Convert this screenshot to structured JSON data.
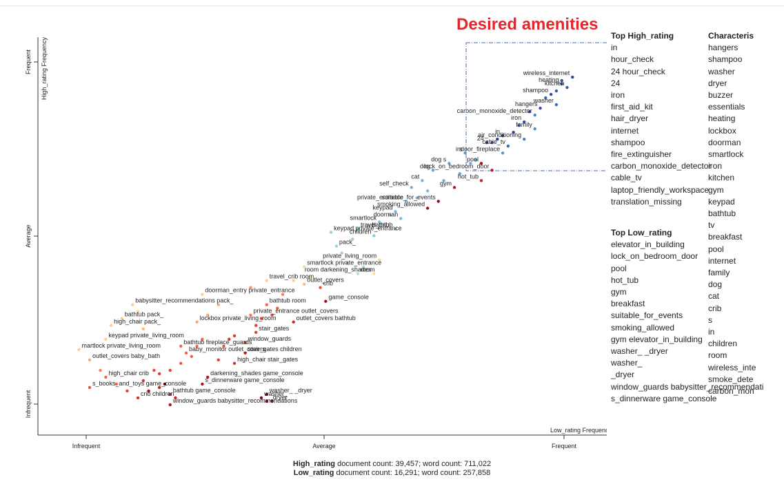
{
  "title_overlay": "Desired amenities",
  "colors": {
    "title": "#e8252b",
    "box": "#4a6fa5",
    "axis": "#333333"
  },
  "chart_data": {
    "type": "scatter",
    "xlabel": "Low_rating Frequency",
    "ylabel": "High_rating Frequency",
    "xticks": [
      "Infrequent",
      "Average",
      "Frequent"
    ],
    "yticks": [
      "Infrequent",
      "Average",
      "Frequent"
    ],
    "xlim": [
      0,
      1
    ],
    "ylim": [
      0,
      1
    ],
    "color_scale": "high-rating association: dark blue (high) to yellow (neutral) to dark red (low)",
    "highlight_box": "Desired amenities",
    "points": [
      {
        "label": "wireless_internet",
        "x": 0.99,
        "y": 0.96,
        "s": 0.95
      },
      {
        "label": "heating",
        "x": 0.97,
        "y": 0.94,
        "s": 0.9
      },
      {
        "label": "kitchen",
        "x": 0.98,
        "y": 0.93,
        "s": 0.85
      },
      {
        "label": "shampoo",
        "x": 0.95,
        "y": 0.91,
        "s": 0.92
      },
      {
        "label": "washer",
        "x": 0.96,
        "y": 0.88,
        "s": 0.8
      },
      {
        "label": "hangers",
        "x": 0.93,
        "y": 0.87,
        "s": 0.9
      },
      {
        "label": "carbon_monoxide_detector",
        "x": 0.92,
        "y": 0.85,
        "s": 0.7
      },
      {
        "label": "iron",
        "x": 0.9,
        "y": 0.83,
        "s": 0.95
      },
      {
        "label": "family",
        "x": 0.92,
        "y": 0.81,
        "s": 0.65
      },
      {
        "label": "in",
        "x": 0.86,
        "y": 0.79,
        "s": 0.96
      },
      {
        "label": "air_conditioning",
        "x": 0.9,
        "y": 0.78,
        "s": 0.7
      },
      {
        "label": "cable_tv",
        "x": 0.87,
        "y": 0.76,
        "s": 0.8
      },
      {
        "label": "24",
        "x": 0.83,
        "y": 0.77,
        "s": 0.92
      },
      {
        "label": "indoor_fireplace",
        "x": 0.86,
        "y": 0.74,
        "s": 0.6
      },
      {
        "label": "s",
        "x": 0.79,
        "y": 0.74,
        "s": 0.6
      },
      {
        "label": "pool",
        "x": 0.82,
        "y": 0.71,
        "s": -0.85
      },
      {
        "label": "lock_on_bedroom_door",
        "x": 0.84,
        "y": 0.69,
        "s": -0.8
      },
      {
        "label": "dog s",
        "x": 0.76,
        "y": 0.71,
        "s": 0.55
      },
      {
        "label": "dog",
        "x": 0.73,
        "y": 0.69,
        "s": 0.55
      },
      {
        "label": "hot_tub",
        "x": 0.82,
        "y": 0.66,
        "s": -0.7
      },
      {
        "label": "cat",
        "x": 0.71,
        "y": 0.66,
        "s": 0.5
      },
      {
        "label": "self_check",
        "x": 0.69,
        "y": 0.64,
        "s": 0.5
      },
      {
        "label": "gym",
        "x": 0.77,
        "y": 0.64,
        "s": -0.8
      },
      {
        "label": "private_entrance",
        "x": 0.68,
        "y": 0.6,
        "s": 0.45
      },
      {
        "label": "suitable_for_events",
        "x": 0.74,
        "y": 0.6,
        "s": -0.9
      },
      {
        "label": "keypad",
        "x": 0.66,
        "y": 0.57,
        "s": 0.45
      },
      {
        "label": "smoking_allowed",
        "x": 0.72,
        "y": 0.58,
        "s": -0.85
      },
      {
        "label": "smartlock",
        "x": 0.63,
        "y": 0.54,
        "s": 0.4
      },
      {
        "label": "doorman",
        "x": 0.67,
        "y": 0.55,
        "s": 0.45
      },
      {
        "label": "bathtub",
        "x": 0.66,
        "y": 0.52,
        "s": 0.4
      },
      {
        "label": "travel_crib",
        "x": 0.59,
        "y": 0.52,
        "s": 0.35
      },
      {
        "label": "keypad private_entrance",
        "x": 0.54,
        "y": 0.51,
        "s": 0.3
      },
      {
        "label": "children",
        "x": 0.62,
        "y": 0.5,
        "s": 0.35
      },
      {
        "label": "pack_",
        "x": 0.55,
        "y": 0.47,
        "s": 0.3
      },
      {
        "label": "private_living_room",
        "x": 0.63,
        "y": 0.43,
        "s": 0.05
      },
      {
        "label": "smartlock private_entrance",
        "x": 0.49,
        "y": 0.41,
        "s": 0.1
      },
      {
        "label": "room",
        "x": 0.59,
        "y": 0.39,
        "s": 0.2
      },
      {
        "label": "room darkening_shades",
        "x": 0.62,
        "y": 0.39,
        "s": 0.05
      },
      {
        "label": "travel_crib room",
        "x": 0.42,
        "y": 0.37,
        "s": 0.0
      },
      {
        "label": "outlet_covers",
        "x": 0.49,
        "y": 0.36,
        "s": -0.05
      },
      {
        "label": "crib",
        "x": 0.52,
        "y": 0.35,
        "s": -0.4
      },
      {
        "label": "doorman_entry private_entrance",
        "x": 0.3,
        "y": 0.33,
        "s": 0.0
      },
      {
        "label": "game_console",
        "x": 0.53,
        "y": 0.31,
        "s": -0.85
      },
      {
        "label": "babysitter_recommendations pack_",
        "x": 0.17,
        "y": 0.3,
        "s": 0.0
      },
      {
        "label": "bathtub room",
        "x": 0.42,
        "y": 0.3,
        "s": -0.3
      },
      {
        "label": "private_entrance outlet_covers",
        "x": 0.39,
        "y": 0.27,
        "s": -0.2
      },
      {
        "label": "bathtub pack_",
        "x": 0.15,
        "y": 0.26,
        "s": 0.0
      },
      {
        "label": "outlet_covers bathtub",
        "x": 0.47,
        "y": 0.25,
        "s": -0.7
      },
      {
        "label": "lockbox private_living_room",
        "x": 0.29,
        "y": 0.25,
        "s": -0.1
      },
      {
        "label": "high_chair pack_",
        "x": 0.13,
        "y": 0.24,
        "s": 0.0
      },
      {
        "label": "stair_gates",
        "x": 0.4,
        "y": 0.22,
        "s": -0.5
      },
      {
        "label": "keypad private_living_room",
        "x": 0.12,
        "y": 0.2,
        "s": 0.0
      },
      {
        "label": "window_guards",
        "x": 0.38,
        "y": 0.19,
        "s": -0.6
      },
      {
        "label": "bathtub fireplace_guards",
        "x": 0.26,
        "y": 0.18,
        "s": -0.3
      },
      {
        "label": "martlock private_living_room",
        "x": 0.07,
        "y": 0.17,
        "s": 0.0
      },
      {
        "label": "stair_gates children",
        "x": 0.38,
        "y": 0.16,
        "s": -0.7
      },
      {
        "label": "baby_monitor outlet_covers",
        "x": 0.27,
        "y": 0.16,
        "s": -0.3
      },
      {
        "label": "outlet_covers baby_bath",
        "x": 0.09,
        "y": 0.14,
        "s": -0.1
      },
      {
        "label": "high_chair stair_gates",
        "x": 0.36,
        "y": 0.13,
        "s": -0.6
      },
      {
        "label": "darkening_shades game_console",
        "x": 0.31,
        "y": 0.09,
        "s": -0.8
      },
      {
        "label": "high_chair crib",
        "x": 0.12,
        "y": 0.09,
        "s": -0.3
      },
      {
        "label": "s_dinnerware game_console",
        "x": 0.3,
        "y": 0.07,
        "s": -0.85
      },
      {
        "label": "s_books_and_toys game_console",
        "x": 0.09,
        "y": 0.06,
        "s": -0.4
      },
      {
        "label": "bathtub game_console",
        "x": 0.24,
        "y": 0.04,
        "s": -0.7
      },
      {
        "label": "washer_ _dryer",
        "x": 0.42,
        "y": 0.04,
        "s": -0.95
      },
      {
        "label": "washer_",
        "x": 0.41,
        "y": 0.03,
        "s": -0.95
      },
      {
        "label": "crib children",
        "x": 0.18,
        "y": 0.03,
        "s": -0.6
      },
      {
        "label": "window_guards babysitter_recommendations",
        "x": 0.24,
        "y": 0.01,
        "s": -0.8
      },
      {
        "label": "_dryer",
        "x": 0.42,
        "y": 0.02,
        "s": -0.9
      }
    ],
    "extra_points": [
      {
        "x": 0.97,
        "y": 0.95,
        "s": 0.9
      },
      {
        "x": 0.96,
        "y": 0.92,
        "s": 0.85
      },
      {
        "x": 0.94,
        "y": 0.9,
        "s": 0.8
      },
      {
        "x": 0.91,
        "y": 0.86,
        "s": 0.9
      },
      {
        "x": 0.89,
        "y": 0.82,
        "s": 0.75
      },
      {
        "x": 0.88,
        "y": 0.8,
        "s": 0.95
      },
      {
        "x": 0.85,
        "y": 0.78,
        "s": 0.98
      },
      {
        "x": 0.84,
        "y": 0.77,
        "s": 0.9
      },
      {
        "x": 0.81,
        "y": 0.72,
        "s": 0.55
      },
      {
        "x": 0.8,
        "y": 0.71,
        "s": 0.5
      },
      {
        "x": 0.78,
        "y": 0.68,
        "s": 0.55
      },
      {
        "x": 0.75,
        "y": 0.66,
        "s": 0.5
      },
      {
        "x": 0.72,
        "y": 0.63,
        "s": 0.45
      },
      {
        "x": 0.7,
        "y": 0.61,
        "s": 0.45
      },
      {
        "x": 0.65,
        "y": 0.56,
        "s": 0.4
      },
      {
        "x": 0.61,
        "y": 0.53,
        "s": 0.35
      },
      {
        "x": 0.58,
        "y": 0.49,
        "s": 0.3
      },
      {
        "x": 0.56,
        "y": 0.45,
        "s": 0.3
      },
      {
        "x": 0.57,
        "y": 0.42,
        "s": 0.25
      },
      {
        "x": 0.55,
        "y": 0.4,
        "s": 0.15
      },
      {
        "x": 0.6,
        "y": 0.41,
        "s": 0.2
      },
      {
        "x": 0.5,
        "y": 0.38,
        "s": 0.05
      },
      {
        "x": 0.47,
        "y": 0.37,
        "s": 0.0
      },
      {
        "x": 0.45,
        "y": 0.33,
        "s": -0.2
      },
      {
        "x": 0.44,
        "y": 0.29,
        "s": -0.35
      },
      {
        "x": 0.43,
        "y": 0.27,
        "s": -0.45
      },
      {
        "x": 0.41,
        "y": 0.26,
        "s": -0.5
      },
      {
        "x": 0.4,
        "y": 0.24,
        "s": -0.5
      },
      {
        "x": 0.36,
        "y": 0.21,
        "s": -0.55
      },
      {
        "x": 0.35,
        "y": 0.2,
        "s": -0.6
      },
      {
        "x": 0.34,
        "y": 0.18,
        "s": -0.4
      },
      {
        "x": 0.33,
        "y": 0.14,
        "s": -0.5
      },
      {
        "x": 0.29,
        "y": 0.18,
        "s": -0.25
      },
      {
        "x": 0.28,
        "y": 0.15,
        "s": -0.3
      },
      {
        "x": 0.26,
        "y": 0.13,
        "s": -0.35
      },
      {
        "x": 0.24,
        "y": 0.11,
        "s": -0.5
      },
      {
        "x": 0.22,
        "y": 0.1,
        "s": -0.55
      },
      {
        "x": 0.21,
        "y": 0.11,
        "s": -0.45
      },
      {
        "x": 0.23,
        "y": 0.07,
        "s": -0.98
      },
      {
        "x": 0.22,
        "y": 0.06,
        "s": -0.75
      },
      {
        "x": 0.2,
        "y": 0.05,
        "s": -0.85
      },
      {
        "x": 0.16,
        "y": 0.05,
        "s": -0.5
      },
      {
        "x": 0.14,
        "y": 0.07,
        "s": -0.3
      },
      {
        "x": 0.11,
        "y": 0.11,
        "s": -0.2
      },
      {
        "x": 0.3,
        "y": 0.2,
        "s": -0.3
      },
      {
        "x": 0.19,
        "y": 0.08,
        "s": -0.6
      },
      {
        "x": 0.18,
        "y": 0.28,
        "s": 0.0
      },
      {
        "x": 0.19,
        "y": 0.23,
        "s": -0.05
      },
      {
        "x": 0.31,
        "y": 0.27,
        "s": -0.1
      },
      {
        "x": 0.33,
        "y": 0.3,
        "s": -0.1
      },
      {
        "x": 0.39,
        "y": 0.35,
        "s": -0.15
      },
      {
        "x": 0.43,
        "y": 0.02,
        "s": -0.9
      },
      {
        "x": 0.25,
        "y": 0.03,
        "s": -0.7
      }
    ]
  },
  "top_high_rating": {
    "heading": "Top High_rating",
    "items": [
      "in",
      "hour_check",
      "24 hour_check",
      "24",
      "iron",
      "first_aid_kit",
      "hair_dryer",
      "internet",
      "shampoo",
      "fire_extinguisher",
      "carbon_monoxide_detector",
      "cable_tv",
      "laptop_friendly_workspace",
      "translation_missing"
    ]
  },
  "top_low_rating": {
    "heading": "Top Low_rating",
    "items": [
      "elevator_in_building",
      "lock_on_bedroom_door",
      "pool",
      "hot_tub",
      "gym",
      "breakfast",
      "suitable_for_events",
      "smoking_allowed",
      "gym elevator_in_building",
      "washer_ _dryer",
      "washer_",
      "_dryer",
      "window_guards babysitter_recommendati",
      "s_dinnerware game_console"
    ]
  },
  "characteristic": {
    "heading": "Characteris",
    "items": [
      "hangers",
      "shampoo",
      "washer",
      "dryer",
      "buzzer",
      "essentials",
      "heating",
      "lockbox",
      "doorman",
      "smartlock",
      "iron",
      "kitchen",
      "gym",
      "keypad",
      "bathtub",
      "tv",
      "breakfast",
      "pool",
      "internet",
      "family",
      "dog",
      "cat",
      "crib",
      "s",
      "in",
      "children",
      "room",
      "wireless_inte",
      "smoke_dete",
      "carbon_mon"
    ]
  },
  "footer": {
    "high_label": "High_rating",
    "high_text": " document count: 39,457; word count: 711,022",
    "low_label": "Low_rating",
    "low_text": " document count: 16,291; word count: 257,858"
  }
}
